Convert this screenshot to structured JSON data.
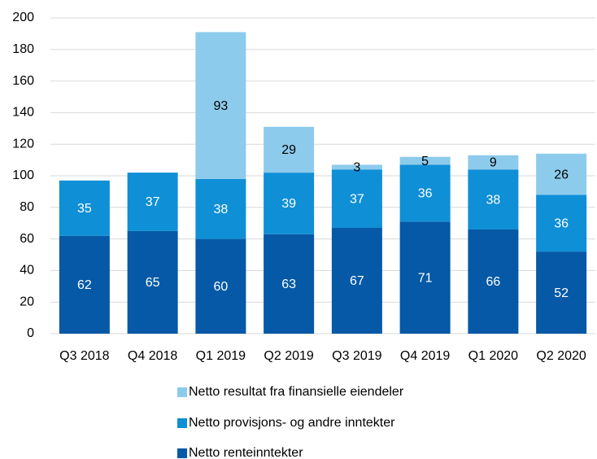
{
  "chart_data": {
    "type": "stacked_bar",
    "categories": [
      "Q3 2018",
      "Q4 2018",
      "Q1 2019",
      "Q2 2019",
      "Q3 2019",
      "Q4 2019",
      "Q1 2020",
      "Q2 2020"
    ],
    "series": [
      {
        "name": "Netto renteinntekter",
        "color": "#0559a6",
        "label_color": "#ffffff",
        "values": [
          62,
          65,
          60,
          63,
          67,
          71,
          66,
          52
        ]
      },
      {
        "name": "Netto provisjons- og andre inntekter",
        "color": "#0f8fd6",
        "label_color": "#ffffff",
        "values": [
          35,
          37,
          38,
          39,
          37,
          36,
          38,
          36
        ]
      },
      {
        "name": "Netto resultat fra finansielle eiendeler",
        "color": "#8dcbec",
        "label_color": "#000000",
        "values": [
          null,
          null,
          93,
          29,
          3,
          5,
          9,
          26
        ]
      }
    ],
    "ylim": [
      0,
      200
    ],
    "yticks": [
      0,
      20,
      40,
      60,
      80,
      100,
      120,
      140,
      160,
      180,
      200
    ],
    "grid": true
  }
}
